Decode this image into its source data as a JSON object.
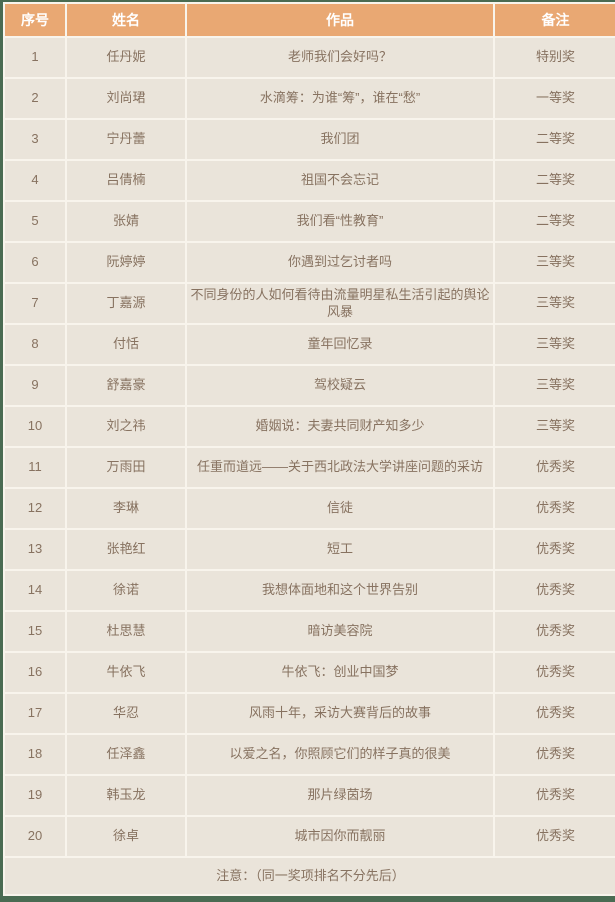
{
  "colors": {
    "page_border": "#4A6B52",
    "header_bg": "#E9A873",
    "header_text": "#FFFFFF",
    "row_bg": "#EAE4DA",
    "grid_line": "#F8F4EC",
    "body_text": "#877260"
  },
  "table": {
    "columns": [
      "序号",
      "姓名",
      "作品",
      "备注"
    ],
    "rows": [
      {
        "no": "1",
        "name": "任丹妮",
        "work": "老师我们会好吗？",
        "award": "特别奖"
      },
      {
        "no": "2",
        "name": "刘尚珺",
        "work": "水滴筹：为谁“筹”，谁在“愁”",
        "award": "一等奖"
      },
      {
        "no": "3",
        "name": "宁丹蕾",
        "work": "我们团",
        "award": "二等奖"
      },
      {
        "no": "4",
        "name": "吕倩楠",
        "work": "祖国不会忘记",
        "award": "二等奖"
      },
      {
        "no": "5",
        "name": "张婧",
        "work": "我们看“性教育”",
        "award": "二等奖"
      },
      {
        "no": "6",
        "name": "阮婷婷",
        "work": "你遇到过乞讨者吗",
        "award": "三等奖"
      },
      {
        "no": "7",
        "name": "丁嘉源",
        "work": "不同身份的人如何看待由流量明星私生活引起的舆论风暴",
        "award": "三等奖"
      },
      {
        "no": "8",
        "name": "付恬",
        "work": "童年回忆录",
        "award": "三等奖"
      },
      {
        "no": "9",
        "name": "舒嘉豪",
        "work": "驾校疑云",
        "award": "三等奖"
      },
      {
        "no": "10",
        "name": "刘之祎",
        "work": "婚姻说：夫妻共同财产知多少",
        "award": "三等奖"
      },
      {
        "no": "11",
        "name": "万雨田",
        "work": "任重而道远——关于西北政法大学讲座问题的采访",
        "award": "优秀奖"
      },
      {
        "no": "12",
        "name": "李琳",
        "work": "信徒",
        "award": "优秀奖"
      },
      {
        "no": "13",
        "name": "张艳红",
        "work": "短工",
        "award": "优秀奖"
      },
      {
        "no": "14",
        "name": "徐诺",
        "work": "我想体面地和这个世界告别",
        "award": "优秀奖"
      },
      {
        "no": "15",
        "name": "杜思慧",
        "work": "暗访美容院",
        "award": "优秀奖"
      },
      {
        "no": "16",
        "name": "牛依飞",
        "work": "牛依飞：创业中国梦",
        "award": "优秀奖"
      },
      {
        "no": "17",
        "name": "华忍",
        "work": "风雨十年，采访大赛背后的故事",
        "award": "优秀奖"
      },
      {
        "no": "18",
        "name": "任泽鑫",
        "work": "以爱之名，你照顾它们的样子真的很美",
        "award": "优秀奖"
      },
      {
        "no": "19",
        "name": "韩玉龙",
        "work": "那片绿茵场",
        "award": "优秀奖"
      },
      {
        "no": "20",
        "name": "徐卓",
        "work": "城市因你而靓丽",
        "award": "优秀奖"
      }
    ],
    "note": "注意：（同一奖项排名不分先后）"
  }
}
